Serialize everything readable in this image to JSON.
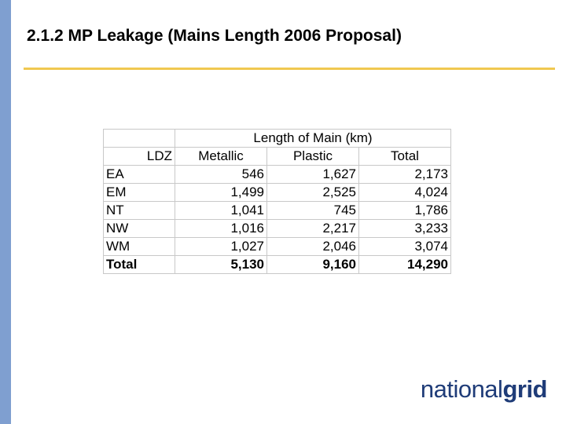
{
  "title": "2.1.2 MP Leakage (Mains Length 2006 Proposal)",
  "table": {
    "group_header": "Length of Main (km)",
    "headers": {
      "ldz": "LDZ",
      "metallic": "Metallic",
      "plastic": "Plastic",
      "total": "Total"
    },
    "rows": [
      {
        "ldz": "EA",
        "metallic": "546",
        "plastic": "1,627",
        "total": "2,173"
      },
      {
        "ldz": "EM",
        "metallic": "1,499",
        "plastic": "2,525",
        "total": "4,024"
      },
      {
        "ldz": "NT",
        "metallic": "1,041",
        "plastic": "745",
        "total": "1,786"
      },
      {
        "ldz": "NW",
        "metallic": "1,016",
        "plastic": "2,217",
        "total": "3,233"
      },
      {
        "ldz": "WM",
        "metallic": "1,027",
        "plastic": "2,046",
        "total": "3,074"
      }
    ],
    "total_row": {
      "ldz": "Total",
      "metallic": "5,130",
      "plastic": "9,160",
      "total": "14,290"
    }
  },
  "logo": {
    "part1": "national",
    "part2": "grid"
  },
  "colors": {
    "left_bar": "#7f9fd0",
    "title_rule": "#f0c850",
    "logo": "#1f3c78"
  }
}
